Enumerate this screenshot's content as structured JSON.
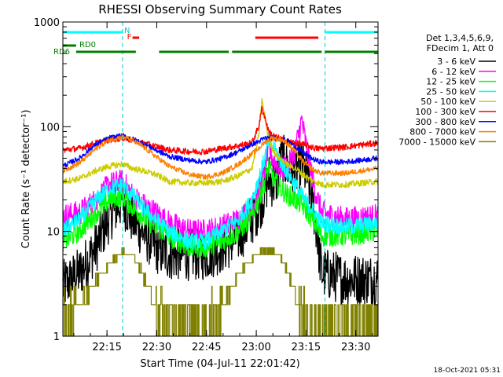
{
  "chart_data": {
    "type": "line",
    "title": "RHESSI Observing Summary Count Rates",
    "xlabel": "Start Time (04-Jul-11 22:01:42)",
    "ylabel": "Count Rate (s⁻¹ detector⁻¹)",
    "y_scale": "log",
    "ylim": [
      1,
      1000
    ],
    "xlim_minutes": [
      0,
      95
    ],
    "x_ticks": [
      {
        "t": 13.3,
        "label": "22:15"
      },
      {
        "t": 28.3,
        "label": "22:30"
      },
      {
        "t": 43.3,
        "label": "22:45"
      },
      {
        "t": 58.3,
        "label": "23:00"
      },
      {
        "t": 73.3,
        "label": "23:15"
      },
      {
        "t": 88.3,
        "label": "23:30"
      }
    ],
    "y_ticks": [
      {
        "v": 1,
        "label": "1"
      },
      {
        "v": 10,
        "label": "10"
      },
      {
        "v": 100,
        "label": "100"
      },
      {
        "v": 1000,
        "label": "1000"
      }
    ],
    "grid": false,
    "legend": {
      "position": "right",
      "header": [
        "Det 1,3,4,5,6,9,",
        "FDecim 1, Att 0"
      ]
    },
    "series": [
      {
        "name": "3 - 6 keV",
        "color": "#000000",
        "noise": 0.25,
        "points": [
          [
            0,
            3
          ],
          [
            5,
            4
          ],
          [
            10,
            7
          ],
          [
            14,
            14
          ],
          [
            18,
            20
          ],
          [
            21,
            13
          ],
          [
            24,
            10
          ],
          [
            28,
            7
          ],
          [
            32,
            6
          ],
          [
            38,
            6
          ],
          [
            43,
            6
          ],
          [
            48,
            7
          ],
          [
            53,
            9
          ],
          [
            57,
            13
          ],
          [
            60,
            20
          ],
          [
            62,
            32
          ],
          [
            64,
            28
          ],
          [
            66,
            50
          ],
          [
            68,
            40
          ],
          [
            70,
            35
          ],
          [
            72,
            45
          ],
          [
            74,
            30
          ],
          [
            76,
            14
          ],
          [
            78,
            4
          ],
          [
            85,
            3.5
          ],
          [
            95,
            3.5
          ]
        ]
      },
      {
        "name": "6 - 12 keV",
        "color": "#ff00ff",
        "noise": 0.12,
        "points": [
          [
            0,
            14
          ],
          [
            5,
            15
          ],
          [
            10,
            20
          ],
          [
            14,
            28
          ],
          [
            18,
            30
          ],
          [
            21,
            22
          ],
          [
            24,
            18
          ],
          [
            28,
            15
          ],
          [
            32,
            12
          ],
          [
            38,
            10
          ],
          [
            43,
            10
          ],
          [
            48,
            11
          ],
          [
            53,
            13
          ],
          [
            57,
            17
          ],
          [
            60,
            30
          ],
          [
            62,
            60
          ],
          [
            64,
            45
          ],
          [
            66,
            40
          ],
          [
            68,
            42
          ],
          [
            70,
            60
          ],
          [
            72,
            115
          ],
          [
            74,
            50
          ],
          [
            76,
            25
          ],
          [
            78,
            15
          ],
          [
            85,
            13
          ],
          [
            95,
            14
          ]
        ]
      },
      {
        "name": "12 - 25 keV",
        "color": "#00ff00",
        "noise": 0.1,
        "points": [
          [
            0,
            8
          ],
          [
            5,
            10
          ],
          [
            10,
            15
          ],
          [
            14,
            20
          ],
          [
            18,
            22
          ],
          [
            21,
            17
          ],
          [
            24,
            14
          ],
          [
            28,
            11
          ],
          [
            32,
            9
          ],
          [
            38,
            7
          ],
          [
            43,
            7
          ],
          [
            48,
            8
          ],
          [
            53,
            10
          ],
          [
            57,
            14
          ],
          [
            60,
            25
          ],
          [
            62,
            40
          ],
          [
            64,
            30
          ],
          [
            66,
            25
          ],
          [
            68,
            22
          ],
          [
            70,
            20
          ],
          [
            72,
            18
          ],
          [
            74,
            15
          ],
          [
            76,
            12
          ],
          [
            78,
            9
          ],
          [
            85,
            9
          ],
          [
            95,
            10
          ]
        ]
      },
      {
        "name": "25 - 50 keV",
        "color": "#00ffff",
        "noise": 0.08,
        "points": [
          [
            0,
            10
          ],
          [
            5,
            13
          ],
          [
            10,
            20
          ],
          [
            14,
            26
          ],
          [
            18,
            28
          ],
          [
            21,
            22
          ],
          [
            24,
            17
          ],
          [
            28,
            13
          ],
          [
            32,
            10
          ],
          [
            38,
            8
          ],
          [
            43,
            8
          ],
          [
            48,
            10
          ],
          [
            53,
            13
          ],
          [
            57,
            20
          ],
          [
            60,
            40
          ],
          [
            62,
            70
          ],
          [
            64,
            60
          ],
          [
            66,
            45
          ],
          [
            68,
            35
          ],
          [
            70,
            28
          ],
          [
            72,
            22
          ],
          [
            74,
            18
          ],
          [
            76,
            15
          ],
          [
            78,
            12
          ],
          [
            85,
            11
          ],
          [
            95,
            12
          ]
        ]
      },
      {
        "name": "50 - 100 keV",
        "color": "#cccc00",
        "noise": 0.03,
        "points": [
          [
            0,
            30
          ],
          [
            5,
            32
          ],
          [
            10,
            38
          ],
          [
            14,
            42
          ],
          [
            18,
            44
          ],
          [
            21,
            40
          ],
          [
            24,
            38
          ],
          [
            28,
            35
          ],
          [
            32,
            30
          ],
          [
            38,
            29
          ],
          [
            43,
            29
          ],
          [
            48,
            30
          ],
          [
            53,
            34
          ],
          [
            57,
            40
          ],
          [
            59,
            80
          ],
          [
            60,
            180
          ],
          [
            61,
            120
          ],
          [
            62,
            75
          ],
          [
            64,
            55
          ],
          [
            66,
            48
          ],
          [
            68,
            43
          ],
          [
            70,
            40
          ],
          [
            72,
            36
          ],
          [
            74,
            32
          ],
          [
            76,
            30
          ],
          [
            78,
            28
          ],
          [
            85,
            28
          ],
          [
            95,
            30
          ]
        ]
      },
      {
        "name": "100 - 300 keV",
        "color": "#ff0000",
        "noise": 0.03,
        "points": [
          [
            0,
            60
          ],
          [
            5,
            62
          ],
          [
            10,
            70
          ],
          [
            14,
            75
          ],
          [
            18,
            78
          ],
          [
            21,
            74
          ],
          [
            24,
            70
          ],
          [
            28,
            65
          ],
          [
            32,
            60
          ],
          [
            38,
            58
          ],
          [
            43,
            58
          ],
          [
            48,
            62
          ],
          [
            53,
            66
          ],
          [
            57,
            70
          ],
          [
            59,
            100
          ],
          [
            60,
            150
          ],
          [
            61,
            120
          ],
          [
            62,
            90
          ],
          [
            64,
            80
          ],
          [
            66,
            76
          ],
          [
            68,
            72
          ],
          [
            70,
            70
          ],
          [
            72,
            68
          ],
          [
            74,
            66
          ],
          [
            76,
            62
          ],
          [
            78,
            62
          ],
          [
            85,
            64
          ],
          [
            95,
            70
          ]
        ]
      },
      {
        "name": "300 - 800 keV",
        "color": "#0000ff",
        "noise": 0.025,
        "points": [
          [
            0,
            42
          ],
          [
            5,
            50
          ],
          [
            10,
            68
          ],
          [
            14,
            78
          ],
          [
            18,
            82
          ],
          [
            21,
            76
          ],
          [
            24,
            70
          ],
          [
            28,
            60
          ],
          [
            32,
            52
          ],
          [
            38,
            48
          ],
          [
            43,
            46
          ],
          [
            48,
            50
          ],
          [
            53,
            58
          ],
          [
            57,
            68
          ],
          [
            59,
            72
          ],
          [
            61,
            78
          ],
          [
            63,
            78
          ],
          [
            66,
            76
          ],
          [
            68,
            72
          ],
          [
            70,
            65
          ],
          [
            72,
            58
          ],
          [
            74,
            52
          ],
          [
            76,
            48
          ],
          [
            78,
            46
          ],
          [
            85,
            46
          ],
          [
            95,
            50
          ]
        ]
      },
      {
        "name": "800 - 7000 keV",
        "color": "#ff8000",
        "noise": 0.025,
        "points": [
          [
            0,
            38
          ],
          [
            5,
            45
          ],
          [
            10,
            62
          ],
          [
            14,
            75
          ],
          [
            18,
            80
          ],
          [
            21,
            74
          ],
          [
            24,
            65
          ],
          [
            28,
            52
          ],
          [
            32,
            42
          ],
          [
            38,
            35
          ],
          [
            43,
            33
          ],
          [
            48,
            36
          ],
          [
            53,
            44
          ],
          [
            57,
            55
          ],
          [
            59,
            62
          ],
          [
            61,
            72
          ],
          [
            63,
            78
          ],
          [
            66,
            75
          ],
          [
            68,
            68
          ],
          [
            70,
            58
          ],
          [
            72,
            48
          ],
          [
            74,
            42
          ],
          [
            76,
            38
          ],
          [
            78,
            36
          ],
          [
            85,
            36
          ],
          [
            95,
            40
          ]
        ]
      },
      {
        "name": "7000 - 15000 keV",
        "color": "#808000",
        "noise": 0.0,
        "points": [
          [
            0,
            1.5
          ],
          [
            5,
            2
          ],
          [
            10,
            3.5
          ],
          [
            14,
            5
          ],
          [
            18,
            6.5
          ],
          [
            21,
            6
          ],
          [
            24,
            4
          ],
          [
            28,
            2
          ],
          [
            32,
            1.5
          ],
          [
            38,
            1.2
          ],
          [
            43,
            1.2
          ],
          [
            48,
            2
          ],
          [
            53,
            4
          ],
          [
            57,
            5.5
          ],
          [
            60,
            6.5
          ],
          [
            63,
            6.5
          ],
          [
            66,
            5.5
          ],
          [
            68,
            4
          ],
          [
            70,
            2.5
          ],
          [
            72,
            1.7
          ],
          [
            74,
            1.3
          ],
          [
            76,
            1.2
          ],
          [
            78,
            1.3
          ],
          [
            85,
            1.4
          ],
          [
            95,
            1.5
          ]
        ]
      }
    ],
    "annotations": {
      "N_label": "N",
      "F_label": "F",
      "RD0_label": "RD0",
      "RD6_label": "RD6",
      "cyan_bars": [
        [
          0,
          18
        ],
        [
          79,
          95
        ]
      ],
      "red_bars": [
        [
          21,
          23
        ],
        [
          58,
          77
        ]
      ],
      "green_bars_rd0": [
        [
          0,
          4
        ]
      ],
      "green_bars_rd6": [
        [
          4,
          22
        ],
        [
          29,
          50
        ],
        [
          51,
          78
        ],
        [
          79,
          95
        ]
      ],
      "cyan_dashed_lines": [
        18,
        79,
        95
      ]
    },
    "footer_date": "18-Oct-2021 05:31"
  }
}
